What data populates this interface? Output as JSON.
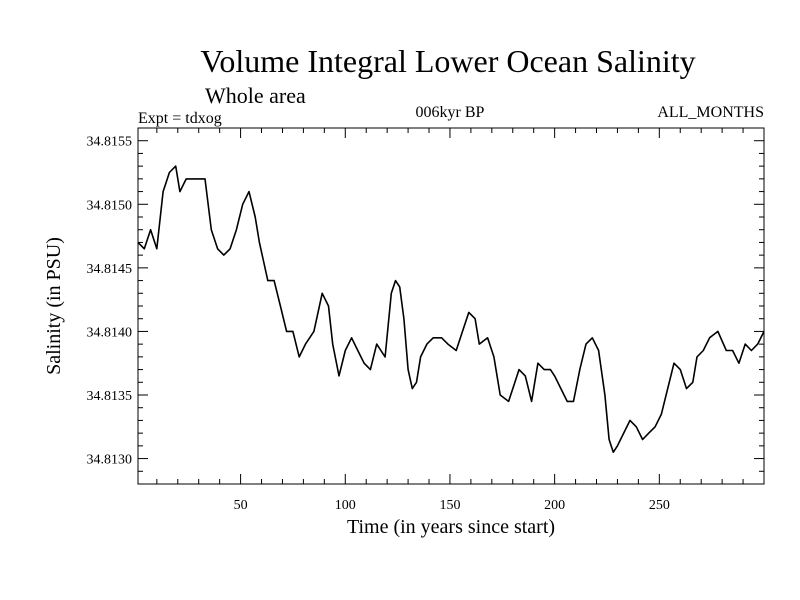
{
  "chart_data": {
    "type": "line",
    "title": "Volume Integral Lower Ocean Salinity",
    "subtitle": "Whole area",
    "annotations": {
      "left": "Expt = tdxog",
      "center": "006kyr BP",
      "right": "ALL_MONTHS"
    },
    "xlabel": "Time (in years since start)",
    "ylabel": "Salinity (in PSU)",
    "xlim": [
      1,
      300
    ],
    "ylim": [
      34.8128,
      34.8156
    ],
    "xticks": [
      50,
      100,
      150,
      200,
      250
    ],
    "xtick_labels": [
      "50",
      "100",
      "150",
      "200",
      "250"
    ],
    "yticks": [
      34.813,
      34.8135,
      34.814,
      34.8145,
      34.815,
      34.8155
    ],
    "ytick_labels": [
      "34.8130",
      "34.8135",
      "34.8140",
      "34.8145",
      "34.8150",
      "34.8155"
    ],
    "grid": false,
    "line_color": "#000000",
    "series": [
      {
        "x": [
          1,
          4,
          7,
          10,
          13,
          16,
          19,
          21,
          24,
          27,
          30,
          33,
          36,
          39,
          42,
          45,
          48,
          51,
          54,
          57,
          59,
          61,
          63,
          66,
          69,
          72,
          75,
          78,
          81,
          85,
          89,
          92,
          94,
          97,
          100,
          103,
          106,
          109,
          112,
          115,
          119,
          122,
          124,
          126,
          128,
          130,
          132,
          134,
          136,
          139,
          142,
          146,
          149,
          153,
          156,
          159,
          162,
          164,
          168,
          171,
          174,
          178,
          181,
          183,
          186,
          189,
          192,
          195,
          198,
          200,
          203,
          206,
          209,
          212,
          215,
          218,
          221,
          224,
          226,
          228,
          230,
          233,
          236,
          239,
          242,
          245,
          248,
          251,
          254,
          257,
          260,
          263,
          266,
          268,
          271,
          274,
          278,
          282,
          285,
          288,
          291,
          294,
          297,
          300
        ],
        "y": [
          34.8147,
          34.81465,
          34.8148,
          34.81465,
          34.8151,
          34.81525,
          34.8153,
          34.8151,
          34.8152,
          34.8152,
          34.8152,
          34.8152,
          34.8148,
          34.81465,
          34.8146,
          34.81465,
          34.8148,
          34.815,
          34.8151,
          34.8149,
          34.8147,
          34.81455,
          34.8144,
          34.8144,
          34.8142,
          34.814,
          34.814,
          34.8138,
          34.8139,
          34.814,
          34.8143,
          34.8142,
          34.8139,
          34.81365,
          34.81385,
          34.81395,
          34.81385,
          34.81375,
          34.8137,
          34.8139,
          34.8138,
          34.8143,
          34.8144,
          34.81435,
          34.8141,
          34.8137,
          34.81355,
          34.8136,
          34.8138,
          34.8139,
          34.81395,
          34.81395,
          34.8139,
          34.81385,
          34.814,
          34.81415,
          34.8141,
          34.8139,
          34.81395,
          34.8138,
          34.8135,
          34.81345,
          34.8136,
          34.8137,
          34.81365,
          34.81345,
          34.81375,
          34.8137,
          34.8137,
          34.81365,
          34.81355,
          34.81345,
          34.81345,
          34.8137,
          34.8139,
          34.81395,
          34.81385,
          34.8135,
          34.81315,
          34.81305,
          34.8131,
          34.8132,
          34.8133,
          34.81325,
          34.81315,
          34.8132,
          34.81325,
          34.81335,
          34.81355,
          34.81375,
          34.8137,
          34.81355,
          34.8136,
          34.8138,
          34.81385,
          34.81395,
          34.814,
          34.81385,
          34.81385,
          34.81375,
          34.8139,
          34.81385,
          34.8139,
          34.814
        ]
      }
    ]
  }
}
